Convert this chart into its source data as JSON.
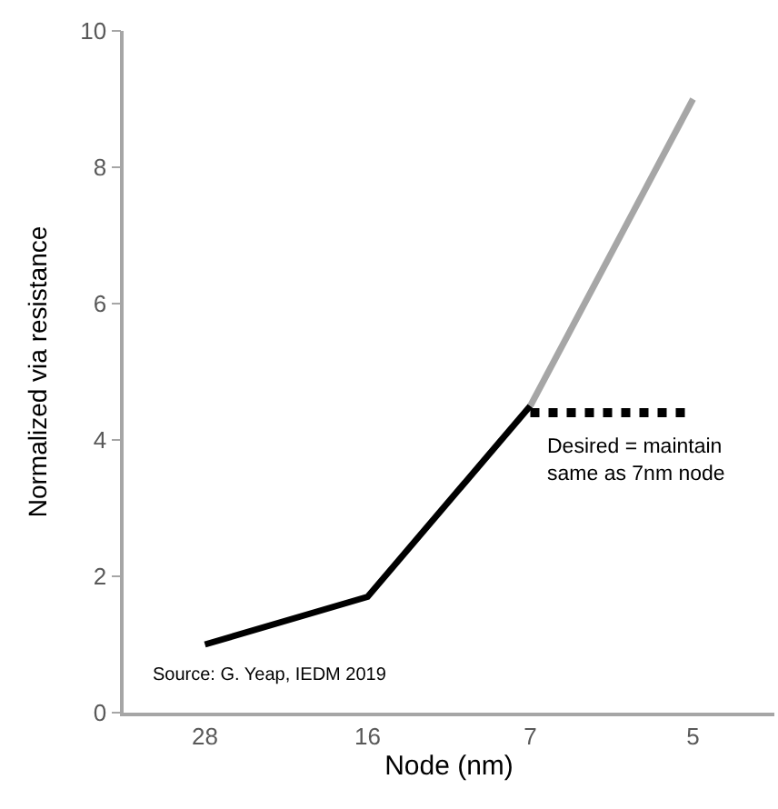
{
  "chart_data": {
    "type": "line",
    "xlabel": "Node (nm)",
    "ylabel": "Normalized via resistance",
    "categories": [
      "28",
      "16",
      "7",
      "5"
    ],
    "series": [
      {
        "color": "#000000",
        "values": [
          1.0,
          1.7,
          4.5,
          null
        ]
      },
      {
        "color": "#a6a6a6",
        "values": [
          null,
          null,
          4.5,
          9.0
        ]
      },
      {
        "color": "#000000",
        "values": [
          null,
          null,
          4.4,
          4.4
        ],
        "line_style": "dotted"
      }
    ],
    "ylim": [
      0,
      10
    ],
    "yticks": [
      0,
      2,
      4,
      6,
      8,
      10
    ],
    "marker": "none",
    "line_style": "solid",
    "annotations": [
      "Desired = maintain\nsame as 7nm node",
      "Source: G. Yeap, IEDM 2019"
    ]
  }
}
